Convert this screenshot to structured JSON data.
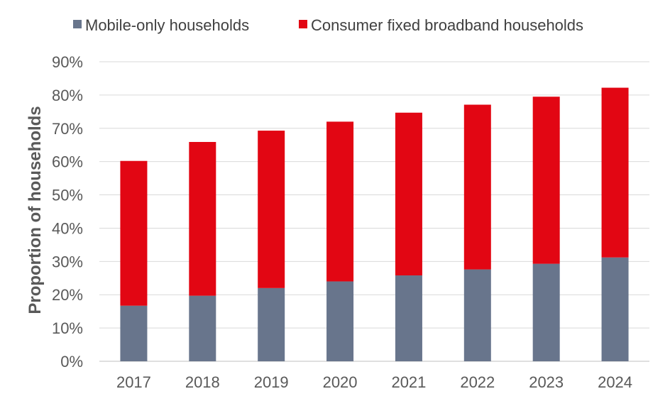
{
  "chart_data": {
    "type": "bar",
    "stacked": true,
    "title": "",
    "xlabel": "",
    "ylabel": "Proportion of households",
    "categories": [
      "2017",
      "2018",
      "2019",
      "2020",
      "2021",
      "2022",
      "2023",
      "2024"
    ],
    "series": [
      {
        "name": "Mobile-only households",
        "color": "#68758C",
        "values": [
          16.7,
          19.7,
          22.0,
          24.0,
          25.8,
          27.6,
          29.3,
          31.2
        ]
      },
      {
        "name": "Consumer fixed broadband households",
        "color": "#E20613",
        "values": [
          43.5,
          46.2,
          47.3,
          48.0,
          48.9,
          49.5,
          50.2,
          51.0
        ]
      }
    ],
    "ylim": [
      0,
      90
    ],
    "yticks": [
      0,
      10,
      20,
      30,
      40,
      50,
      60,
      70,
      80,
      90
    ],
    "ytick_format": "percent",
    "grid": true,
    "legend_position": "top"
  }
}
